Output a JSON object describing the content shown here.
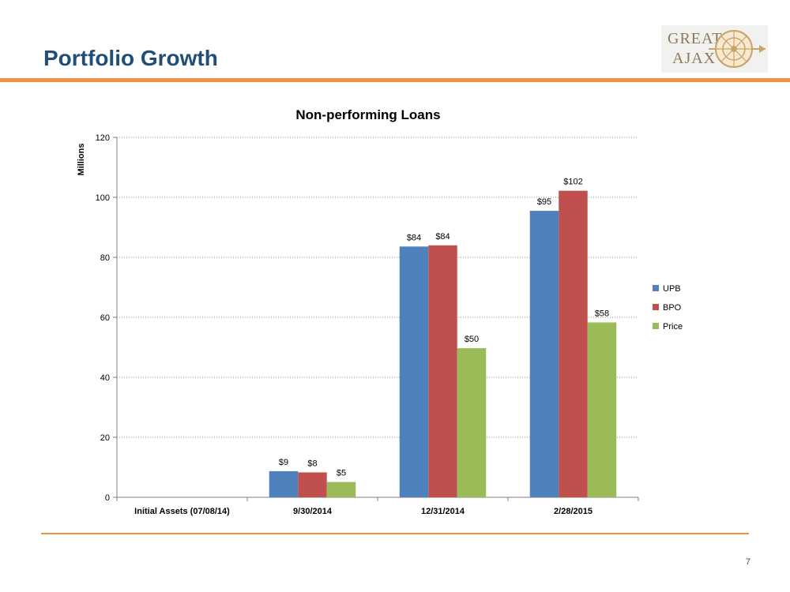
{
  "page": {
    "title": "Portfolio Growth",
    "page_number": "7"
  },
  "logo": {
    "line1": "GREAT",
    "line2": "AJAX"
  },
  "colors": {
    "accent_rule": "#f0923f",
    "title": "#1f4e79"
  },
  "chart_data": {
    "type": "bar",
    "title": "Non-performing Loans",
    "xlabel": "",
    "ylabel": "Millions",
    "ylim": [
      0,
      120
    ],
    "yticks": [
      0,
      20,
      40,
      60,
      80,
      100,
      120
    ],
    "grid": true,
    "legend_position": "right",
    "categories": [
      "Initial Assets (07/08/14)",
      "9/30/2014",
      "12/31/2014",
      "2/28/2015"
    ],
    "series": [
      {
        "name": "UPB",
        "color": "#4f81bd",
        "values": [
          0,
          8.7,
          83.6,
          95.5
        ],
        "labels": [
          "",
          "$9",
          "$84",
          "$95"
        ]
      },
      {
        "name": "BPO",
        "color": "#c0504d",
        "values": [
          0,
          8.3,
          84.0,
          102.2
        ],
        "labels": [
          "",
          "$8",
          "$84",
          "$102"
        ]
      },
      {
        "name": "Price",
        "color": "#9bbb59",
        "values": [
          0,
          5.1,
          49.7,
          58.3
        ],
        "labels": [
          "",
          "$5",
          "$50",
          "$58"
        ]
      }
    ]
  }
}
